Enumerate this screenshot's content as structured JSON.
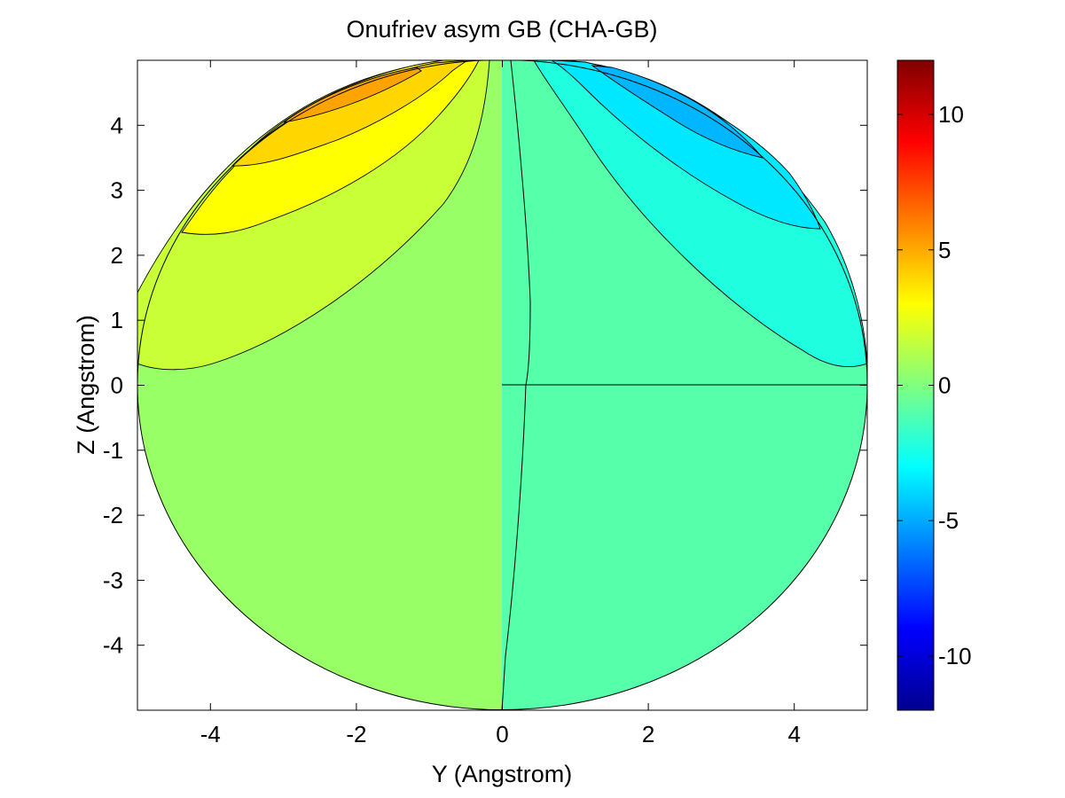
{
  "chart_data": {
    "type": "heatmap",
    "subtype": "filled-contour",
    "title": "Onufriev asym GB (CHA-GB)",
    "xlabel": "Y (Angstrom)",
    "ylabel": "Z (Angstrom)",
    "xlim": [
      -5,
      5
    ],
    "ylim": [
      -5,
      5
    ],
    "xticks": [
      -4,
      -2,
      0,
      2,
      4
    ],
    "yticks": [
      4,
      3,
      2,
      1,
      0,
      -1,
      -2,
      -3,
      -4
    ],
    "colorbar": {
      "range": [
        -12,
        12
      ],
      "ticks": [
        10,
        5,
        0,
        -5,
        -10
      ],
      "colormap": "jet"
    },
    "domain": {
      "shape": "circle",
      "radius": 5,
      "center": [
        0,
        0
      ]
    },
    "regions": [
      {
        "level": 0.5,
        "color": "#98ff66",
        "label": "left half"
      },
      {
        "level": -1.5,
        "color": "#56ffa9",
        "label": "right half"
      },
      {
        "level": 1.5,
        "color": "#c8ff37",
        "label": "upper-left band"
      },
      {
        "level": 3.0,
        "color": "#ffff00",
        "label": "upper-left band"
      },
      {
        "level": 4.5,
        "color": "#ffd600",
        "label": "upper-left band"
      },
      {
        "level": 6.0,
        "color": "#ffa300",
        "label": "upper-left band"
      },
      {
        "level": -2.5,
        "color": "#1fffe0",
        "label": "upper-right band"
      },
      {
        "level": -4.0,
        "color": "#00e8ff",
        "label": "upper-right band"
      },
      {
        "level": -5.5,
        "color": "#00b6ff",
        "label": "upper-right band"
      }
    ],
    "grid": false,
    "legend": "colorbar-right"
  }
}
